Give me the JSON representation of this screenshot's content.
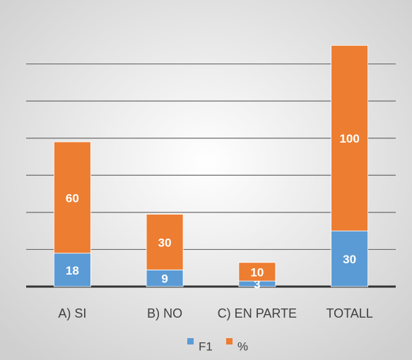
{
  "chart_data": {
    "type": "stacked_bar",
    "categories": [
      "A) SI",
      "B) NO",
      "C) EN PARTE",
      "TOTALL"
    ],
    "series": [
      {
        "name": "F1",
        "color": "#5b9bd5",
        "values": [
          18,
          9,
          3,
          30
        ]
      },
      {
        "name": "%",
        "color": "#ed7d31",
        "values": [
          60,
          30,
          10,
          100
        ]
      }
    ],
    "ylim": [
      0,
      140
    ],
    "yticks": [
      0,
      20,
      40,
      60,
      80,
      100,
      120
    ],
    "grid": true,
    "legend": "bottom"
  }
}
